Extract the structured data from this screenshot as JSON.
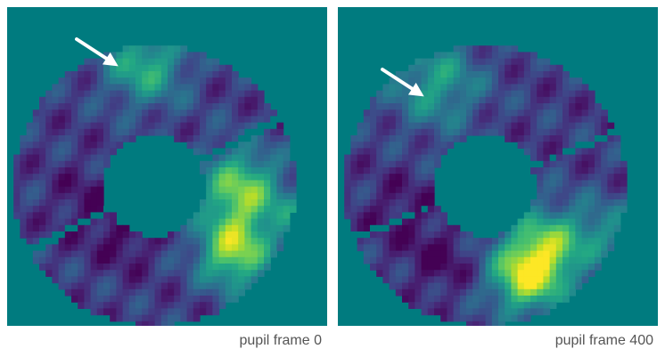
{
  "figure": {
    "colors": {
      "background": "#007b7f",
      "arrow": "#ffffff",
      "caption": "#555555",
      "colormap": "viridis"
    },
    "panels": [
      {
        "caption": "pupil frame 0",
        "frame": 0,
        "arrow_icon": "arrow-pointing-to-bright-region"
      },
      {
        "caption": "pupil frame 400",
        "frame": 400,
        "arrow_icon": "arrow-pointing-to-bright-region"
      }
    ]
  }
}
